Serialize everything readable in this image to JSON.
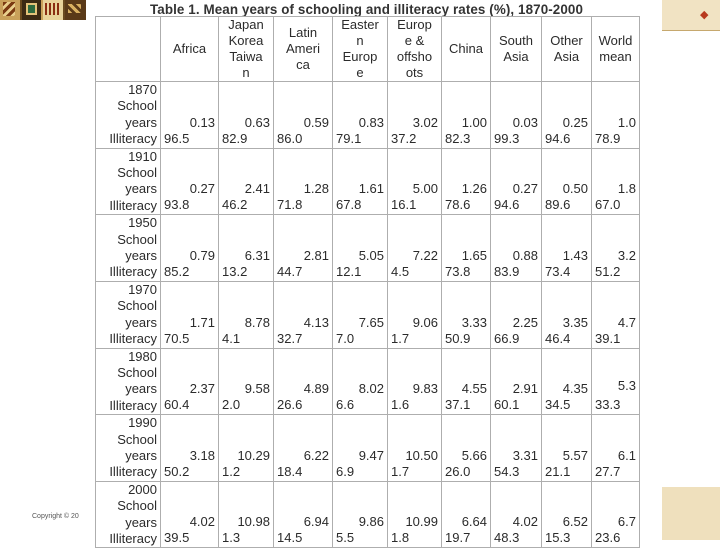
{
  "title": "Table 1. Mean years of schooling and illiteracy rates (%), 1870-2000",
  "headers": [
    "",
    "Africa",
    "Japan\nKorea\nTaiwa\nn",
    "Latin\nAmeri\nca",
    "Easter\nn\nEurop\ne",
    "Europ\ne &\noffsho\nots",
    "China",
    "South\nAsia",
    "Other\nAsia",
    "World\nmean"
  ],
  "row_label_school": "School\nyears",
  "row_label_illit": "Illiteracy",
  "rows": [
    {
      "year": "1870",
      "school": [
        "0.13",
        "0.63",
        "0.59",
        "0.83",
        "3.02",
        "1.00",
        "0.03",
        "0.25",
        "1.0"
      ],
      "illit": [
        "96.5",
        "82.9",
        "86.0",
        "79.1",
        "37.2",
        "82.3",
        "99.3",
        "94.6",
        "78.9"
      ]
    },
    {
      "year": "1910",
      "school": [
        "0.27",
        "2.41",
        "1.28",
        "1.61",
        "5.00",
        "1.26",
        "0.27",
        "0.50",
        "1.8"
      ],
      "illit": [
        "93.8",
        "46.2",
        "71.8",
        "67.8",
        "16.1",
        "78.6",
        "94.6",
        "89.6",
        "67.0"
      ]
    },
    {
      "year": "1950",
      "school": [
        "0.79",
        "6.31",
        "2.81",
        "5.05",
        "7.22",
        "1.65",
        "0.88",
        "1.43",
        "3.2"
      ],
      "illit": [
        "85.2",
        "13.2",
        "44.7",
        "12.1",
        "4.5",
        "73.8",
        "83.9",
        "73.4",
        "51.2"
      ]
    },
    {
      "year": "1970",
      "school": [
        "1.71",
        "8.78",
        "4.13",
        "7.65",
        "9.06",
        "3.33",
        "2.25",
        "3.35",
        "4.7"
      ],
      "illit": [
        "70.5",
        "4.1",
        "32.7",
        "7.0",
        "1.7",
        "50.9",
        "66.9",
        "46.4",
        "39.1"
      ]
    },
    {
      "year": "1980",
      "school": [
        "2.37",
        "9.58",
        "4.89",
        "8.02",
        "9.83",
        "4.55",
        "2.91",
        "4.35",
        "5.3"
      ],
      "illit": [
        "60.4",
        "2.0",
        "26.6",
        "6.6",
        "1.6",
        "37.1",
        "60.1",
        "34.5",
        "33.3"
      ]
    },
    {
      "year": "1990",
      "school": [
        "3.18",
        "10.29",
        "6.22",
        "9.47",
        "10.50",
        "5.66",
        "3.31",
        "5.57",
        "6.1"
      ],
      "illit": [
        "50.2",
        "1.2",
        "18.4",
        "6.9",
        "1.7",
        "26.0",
        "54.3",
        "21.1",
        "27.7"
      ]
    },
    {
      "year": "2000",
      "school": [
        "4.02",
        "10.98",
        "6.94",
        "9.86",
        "10.99",
        "6.64",
        "4.02",
        "6.52",
        "6.7"
      ],
      "illit": [
        "39.5",
        "1.3",
        "14.5",
        "5.5",
        "1.8",
        "19.7",
        "48.3",
        "15.3",
        "23.6"
      ]
    }
  ],
  "copyright": "Copyright © 20",
  "colors": {
    "border": "#aeaeae",
    "text": "#2b2b2b",
    "edge_strip": "#f1e3c3",
    "accent_mark": "#b83a1e"
  }
}
